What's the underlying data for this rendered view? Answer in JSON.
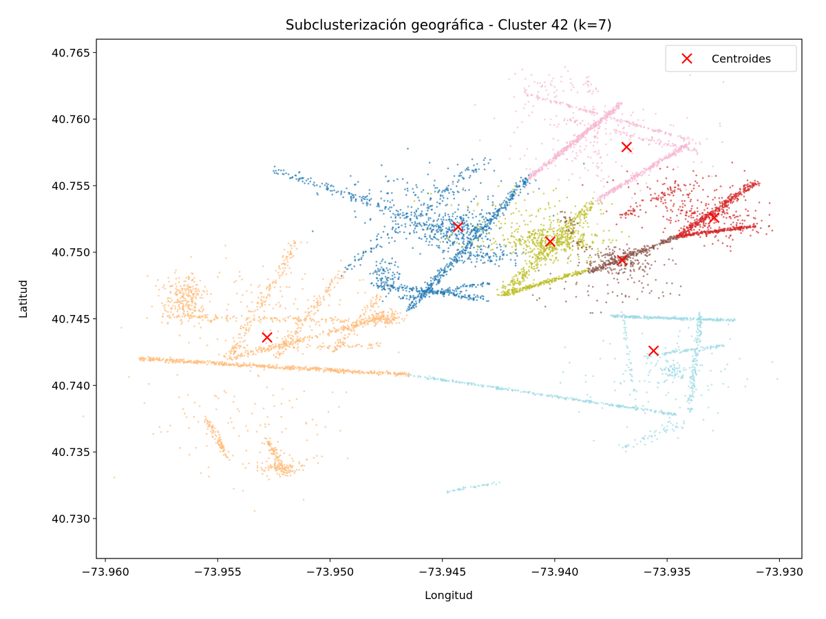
{
  "chart_data": {
    "type": "scatter",
    "title": "Subclusterización geográfica - Cluster 42 (k=7)",
    "xlabel": "Longitud",
    "ylabel": "Latitud",
    "xlim": [
      -73.9604,
      -73.929
    ],
    "ylim": [
      40.727,
      40.766
    ],
    "xticks": [
      -73.96,
      -73.955,
      -73.95,
      -73.945,
      -73.94,
      -73.935,
      -73.93
    ],
    "xtick_labels": [
      "−73.960",
      "−73.955",
      "−73.950",
      "−73.945",
      "−73.940",
      "−73.935",
      "−73.930"
    ],
    "yticks": [
      40.73,
      40.735,
      40.74,
      40.745,
      40.75,
      40.755,
      40.76,
      40.765
    ],
    "ytick_labels": [
      "40.730",
      "40.735",
      "40.740",
      "40.745",
      "40.750",
      "40.755",
      "40.760",
      "40.765"
    ],
    "grid": false,
    "legend": {
      "position": "top-right",
      "entries": [
        "Centroides"
      ]
    },
    "colors": {
      "blue": "#1f77b4",
      "orange": "#ffbb78",
      "olive": "#bcbd22",
      "brown": "#8c564b",
      "red": "#d62728",
      "pink": "#f7b6d2",
      "cyan": "#9edae5",
      "centroid": "#ff0000"
    },
    "centroids": [
      {
        "x": -73.9443,
        "y": 40.7519
      },
      {
        "x": -73.9528,
        "y": 40.7436
      },
      {
        "x": -73.9402,
        "y": 40.7508
      },
      {
        "x": -73.937,
        "y": 40.7494
      },
      {
        "x": -73.9329,
        "y": 40.7526
      },
      {
        "x": -73.9368,
        "y": 40.7579
      },
      {
        "x": -73.9356,
        "y": 40.7426
      }
    ],
    "subclusters": [
      {
        "color": "blue",
        "segments": [
          {
            "from": [
              -73.9465,
              40.7457
            ],
            "to": [
              -73.9412,
              40.7555
            ],
            "n": 420,
            "s": 0.00022
          },
          {
            "from": [
              -73.9525,
              40.7562
            ],
            "to": [
              -73.9465,
              40.7527
            ],
            "n": 120,
            "s": 0.00025
          },
          {
            "from": [
              -73.9495,
              40.7485
            ],
            "to": [
              -73.943,
              40.757
            ],
            "n": 140,
            "s": 0.00035
          },
          {
            "from": [
              -73.9478,
              40.7475
            ],
            "to": [
              -73.943,
              40.7465
            ],
            "n": 160,
            "s": 0.00018
          },
          {
            "from": [
              -73.947,
              40.7465
            ],
            "to": [
              -73.9428,
              40.7477
            ],
            "n": 90,
            "s": 0.00018
          }
        ],
        "blobs": [
          {
            "c": [
              -73.9448,
              40.7517
            ],
            "sx": 0.001,
            "sy": 0.0007,
            "n": 320
          },
          {
            "c": [
              -73.9475,
              40.7482
            ],
            "sx": 0.0004,
            "sy": 0.0006,
            "n": 90
          },
          {
            "c": [
              -73.943,
              40.7497
            ],
            "sx": 0.0007,
            "sy": 0.0004,
            "n": 90
          },
          {
            "c": [
              -73.946,
              40.754
            ],
            "sx": 0.0025,
            "sy": 0.0012,
            "n": 140
          }
        ]
      },
      {
        "color": "orange",
        "segments": [
          {
            "from": [
              -73.9585,
              40.742
            ],
            "to": [
              -73.9465,
              40.7408
            ],
            "n": 520,
            "s": 0.00012
          },
          {
            "from": [
              -73.9545,
              40.742
            ],
            "to": [
              -73.9478,
              40.745
            ],
            "n": 230,
            "s": 0.00018
          },
          {
            "from": [
              -73.9575,
              40.7452
            ],
            "to": [
              -73.949,
              40.7448
            ],
            "n": 140,
            "s": 0.00018
          },
          {
            "from": [
              -73.9545,
              40.742
            ],
            "to": [
              -73.9515,
              40.7508
            ],
            "n": 160,
            "s": 0.00025
          },
          {
            "from": [
              -73.9525,
              40.742
            ],
            "to": [
              -73.9495,
              40.7485
            ],
            "n": 120,
            "s": 0.0002
          },
          {
            "from": [
              -73.9498,
              40.7425
            ],
            "to": [
              -73.9478,
              40.7468
            ],
            "n": 90,
            "s": 0.00018
          },
          {
            "from": [
              -73.9545,
              40.7428
            ],
            "to": [
              -73.9475,
              40.743
            ],
            "n": 80,
            "s": 0.00018
          },
          {
            "from": [
              -73.9555,
              40.7375
            ],
            "to": [
              -73.9545,
              40.7345
            ],
            "n": 80,
            "s": 0.00015
          },
          {
            "from": [
              -73.9528,
              40.736
            ],
            "to": [
              -73.952,
              40.7335
            ],
            "n": 80,
            "s": 0.00015
          }
        ],
        "blobs": [
          {
            "c": [
              -73.9565,
              40.7465
            ],
            "sx": 0.0005,
            "sy": 0.0009,
            "n": 240
          },
          {
            "c": [
              -73.9475,
              40.7451
            ],
            "sx": 0.0004,
            "sy": 0.0003,
            "n": 120
          },
          {
            "c": [
              -73.9522,
              40.7338
            ],
            "sx": 0.0005,
            "sy": 0.0003,
            "n": 100
          },
          {
            "c": [
              -73.954,
              40.737
            ],
            "sx": 0.0025,
            "sy": 0.002,
            "n": 120
          },
          {
            "c": [
              -73.953,
              40.746
            ],
            "sx": 0.0025,
            "sy": 0.002,
            "n": 120
          }
        ]
      },
      {
        "color": "olive",
        "segments": [
          {
            "from": [
              -73.9422,
              40.747
            ],
            "to": [
              -73.9382,
              40.7538
            ],
            "n": 320,
            "s": 0.0003
          },
          {
            "from": [
              -73.9425,
              40.7467
            ],
            "to": [
              -73.9385,
              40.7487
            ],
            "n": 220,
            "s": 0.00012
          }
        ],
        "blobs": [
          {
            "c": [
              -73.9402,
              40.7508
            ],
            "sx": 0.0011,
            "sy": 0.0007,
            "n": 380
          },
          {
            "c": [
              -73.941,
              40.752
            ],
            "sx": 0.002,
            "sy": 0.0015,
            "n": 120
          }
        ]
      },
      {
        "color": "brown",
        "segments": [
          {
            "from": [
              -73.9385,
              40.7485
            ],
            "to": [
              -73.9345,
              40.7512
            ],
            "n": 250,
            "s": 0.00015
          },
          {
            "from": [
              -73.9388,
              40.75
            ],
            "to": [
              -73.9395,
              40.753
            ],
            "n": 40,
            "s": 0.0003
          }
        ],
        "blobs": [
          {
            "c": [
              -73.937,
              40.7494
            ],
            "sx": 0.0008,
            "sy": 0.0005,
            "n": 200
          },
          {
            "c": [
              -73.9375,
              40.7475
            ],
            "sx": 0.0015,
            "sy": 0.001,
            "n": 60
          }
        ]
      },
      {
        "color": "red",
        "segments": [
          {
            "from": [
              -73.9345,
              40.7512
            ],
            "to": [
              -73.931,
              40.7553
            ],
            "n": 320,
            "s": 0.00018
          },
          {
            "from": [
              -73.9345,
              40.7512
            ],
            "to": [
              -73.931,
              40.752
            ],
            "n": 220,
            "s": 0.0001
          },
          {
            "from": [
              -73.9375,
              40.7525
            ],
            "to": [
              -73.9345,
              40.7548
            ],
            "n": 70,
            "s": 0.0003
          }
        ],
        "blobs": [
          {
            "c": [
              -73.9329,
              40.7526
            ],
            "sx": 0.0012,
            "sy": 0.0009,
            "n": 200
          },
          {
            "c": [
              -73.9345,
              40.7545
            ],
            "sx": 0.0015,
            "sy": 0.001,
            "n": 80
          }
        ]
      },
      {
        "color": "pink",
        "segments": [
          {
            "from": [
              -73.9412,
              40.7555
            ],
            "to": [
              -73.937,
              40.7612
            ],
            "n": 380,
            "s": 0.00012
          },
          {
            "from": [
              -73.9382,
              40.7538
            ],
            "to": [
              -73.934,
              40.7582
            ],
            "n": 270,
            "s": 0.00012
          },
          {
            "from": [
              -73.9415,
              40.762
            ],
            "to": [
              -73.9335,
              40.7582
            ],
            "n": 140,
            "s": 0.0001
          },
          {
            "from": [
              -73.9395,
              40.76
            ],
            "to": [
              -73.9335,
              40.7575
            ],
            "n": 100,
            "s": 0.00015
          },
          {
            "from": [
              -73.9385,
              40.7633
            ],
            "to": [
              -73.938,
              40.756
            ],
            "n": 40,
            "s": 0.00015
          }
        ],
        "blobs": [
          {
            "c": [
              -73.938,
              40.758
            ],
            "sx": 0.0025,
            "sy": 0.0018,
            "n": 160
          },
          {
            "c": [
              -73.94,
              40.7625
            ],
            "sx": 0.001,
            "sy": 0.0006,
            "n": 50
          }
        ]
      },
      {
        "color": "cyan",
        "segments": [
          {
            "from": [
              -73.9465,
              40.7408
            ],
            "to": [
              -73.9345,
              40.7378
            ],
            "n": 300,
            "s": 8e-05
          },
          {
            "from": [
              -73.9375,
              40.7452
            ],
            "to": [
              -73.932,
              40.7449
            ],
            "n": 270,
            "s": 8e-05
          },
          {
            "from": [
              -73.9335,
              40.7455
            ],
            "to": [
              -73.934,
              40.738
            ],
            "n": 150,
            "s": 0.00012
          },
          {
            "from": [
              -73.936,
              40.7422
            ],
            "to": [
              -73.9325,
              40.743
            ],
            "n": 90,
            "s": 0.0001
          },
          {
            "from": [
              -73.937,
              40.7455
            ],
            "to": [
              -73.9365,
              40.7395
            ],
            "n": 40,
            "s": 0.00012
          },
          {
            "from": [
              -73.9448,
              40.732
            ],
            "to": [
              -73.9425,
              40.7327
            ],
            "n": 40,
            "s": 8e-05
          },
          {
            "from": [
              -73.937,
              40.7352
            ],
            "to": [
              -73.934,
              40.7375
            ],
            "n": 50,
            "s": 0.0003
          }
        ],
        "blobs": [
          {
            "c": [
              -73.9348,
              40.741
            ],
            "sx": 0.0003,
            "sy": 0.0003,
            "n": 60
          },
          {
            "c": [
              -73.935,
              40.7405
            ],
            "sx": 0.0025,
            "sy": 0.002,
            "n": 110
          }
        ]
      }
    ]
  }
}
